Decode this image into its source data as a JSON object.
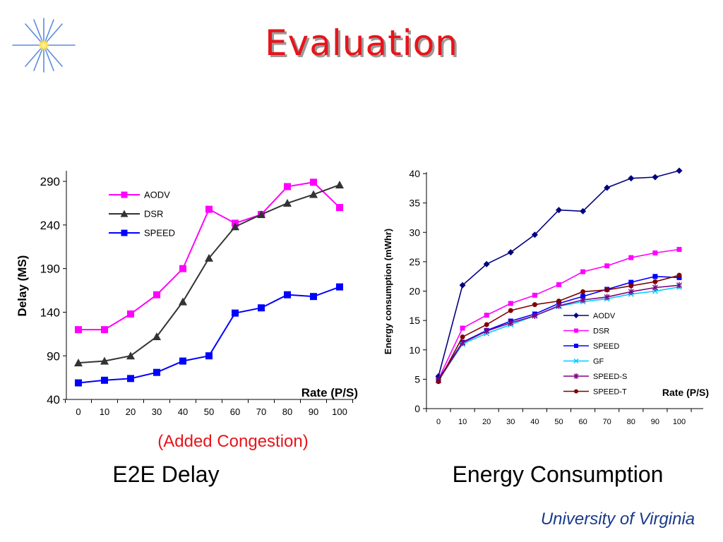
{
  "slide": {
    "title": "Evaluation",
    "note": "(Added Congestion)",
    "caption_left": "E2E Delay",
    "caption_right": "Energy Consumption",
    "logo_text": "University of Virginia",
    "colors": {
      "title": "#e8141a",
      "logo": "#1a3a8a"
    }
  },
  "chart_data": [
    {
      "type": "line",
      "title": "",
      "xlabel": "Rate (P/S)",
      "ylabel": "Delay (MS)",
      "categories": [
        "0",
        "10",
        "20",
        "30",
        "40",
        "50",
        "60",
        "70",
        "80",
        "90",
        "100"
      ],
      "ylim": [
        40,
        290
      ],
      "yticks": [
        290,
        240,
        190,
        140,
        90,
        40
      ],
      "legend_position": "top-left",
      "series": [
        {
          "name": "AODV",
          "color": "#ff00ff",
          "marker": "square",
          "values": [
            120,
            120,
            138,
            160,
            190,
            258,
            242,
            252,
            284,
            289,
            260
          ]
        },
        {
          "name": "DSR",
          "color": "#333333",
          "marker": "triangle",
          "values": [
            82,
            84,
            90,
            112,
            152,
            202,
            238,
            252,
            265,
            275,
            286
          ]
        },
        {
          "name": "SPEED",
          "color": "#0000ff",
          "marker": "square",
          "values": [
            59,
            62,
            64,
            71,
            84,
            90,
            139,
            145,
            160,
            158,
            169
          ]
        }
      ]
    },
    {
      "type": "line",
      "title": "",
      "xlabel": "Rate (P/S)",
      "ylabel": "Energy consumption (mWhr)",
      "categories": [
        "0",
        "10",
        "20",
        "30",
        "40",
        "50",
        "60",
        "70",
        "80",
        "90",
        "100"
      ],
      "ylim": [
        0,
        40
      ],
      "yticks": [
        40,
        35,
        30,
        25,
        20,
        15,
        10,
        5,
        0
      ],
      "legend_position": "bottom-right",
      "series": [
        {
          "name": "AODV",
          "color": "#000080",
          "marker": "diamond",
          "values": [
            5.5,
            21.0,
            24.6,
            26.6,
            29.6,
            33.8,
            33.6,
            37.6,
            39.2,
            39.4,
            40.5
          ]
        },
        {
          "name": "DSR",
          "color": "#ff00ff",
          "marker": "square",
          "values": [
            5.0,
            13.7,
            15.9,
            17.9,
            19.3,
            21.1,
            23.3,
            24.3,
            25.7,
            26.5,
            27.1
          ]
        },
        {
          "name": "SPEED",
          "color": "#0000ff",
          "marker": "square",
          "values": [
            5.0,
            11.3,
            13.3,
            14.9,
            16.1,
            17.9,
            19.1,
            20.3,
            21.5,
            22.5,
            22.3
          ]
        },
        {
          "name": "GF",
          "color": "#00ccff",
          "marker": "x",
          "values": [
            4.8,
            11.0,
            12.8,
            14.3,
            15.8,
            17.4,
            18.2,
            18.7,
            19.5,
            20.0,
            20.7
          ]
        },
        {
          "name": "SPEED-S",
          "color": "#800080",
          "marker": "star",
          "values": [
            4.8,
            11.2,
            13.2,
            14.6,
            15.8,
            17.5,
            18.5,
            19.0,
            19.9,
            20.6,
            21.0
          ]
        },
        {
          "name": "SPEED-T",
          "color": "#800000",
          "marker": "circle",
          "values": [
            4.6,
            12.2,
            14.3,
            16.7,
            17.7,
            18.3,
            19.9,
            20.2,
            20.9,
            21.6,
            22.7
          ]
        }
      ]
    }
  ]
}
